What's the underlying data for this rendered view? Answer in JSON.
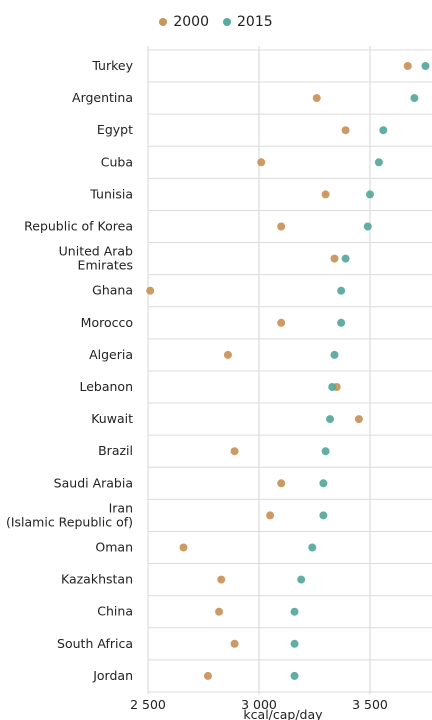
{
  "chart_data": {
    "type": "scatter",
    "xlabel": "kcal/cap/day",
    "xlim": [
      2500,
      3800
    ],
    "xticks": [
      2500,
      3000,
      3500
    ],
    "xtick_labels": [
      "2 500",
      "3 000",
      "3 500"
    ],
    "grid": true,
    "legend_position": "top-center",
    "colors": {
      "2000": "#c9955a",
      "2015": "#5aaaa0"
    },
    "series": [
      {
        "name": "2000",
        "values": [
          3670,
          3260,
          3390,
          3010,
          3300,
          3100,
          3340,
          2510,
          3100,
          2860,
          3350,
          3450,
          2890,
          3100,
          3050,
          2660,
          2830,
          2820,
          2890,
          2770
        ]
      },
      {
        "name": "2015",
        "values": [
          3750,
          3700,
          3560,
          3540,
          3500,
          3490,
          3390,
          3370,
          3370,
          3340,
          3330,
          3320,
          3300,
          3290,
          3290,
          3240,
          3190,
          3160,
          3160,
          3160
        ]
      }
    ],
    "categories": [
      [
        "Turkey"
      ],
      [
        "Argentina"
      ],
      [
        "Egypt"
      ],
      [
        "Cuba"
      ],
      [
        "Tunisia"
      ],
      [
        "Republic of Korea"
      ],
      [
        "United Arab",
        "Emirates"
      ],
      [
        "Ghana"
      ],
      [
        "Morocco"
      ],
      [
        "Algeria"
      ],
      [
        "Lebanon"
      ],
      [
        "Kuwait"
      ],
      [
        "Brazil"
      ],
      [
        "Saudi Arabia"
      ],
      [
        "Iran",
        "(Islamic Republic of)"
      ],
      [
        "Oman"
      ],
      [
        "Kazakhstan"
      ],
      [
        "China"
      ],
      [
        "South Africa"
      ],
      [
        "Jordan"
      ]
    ]
  }
}
